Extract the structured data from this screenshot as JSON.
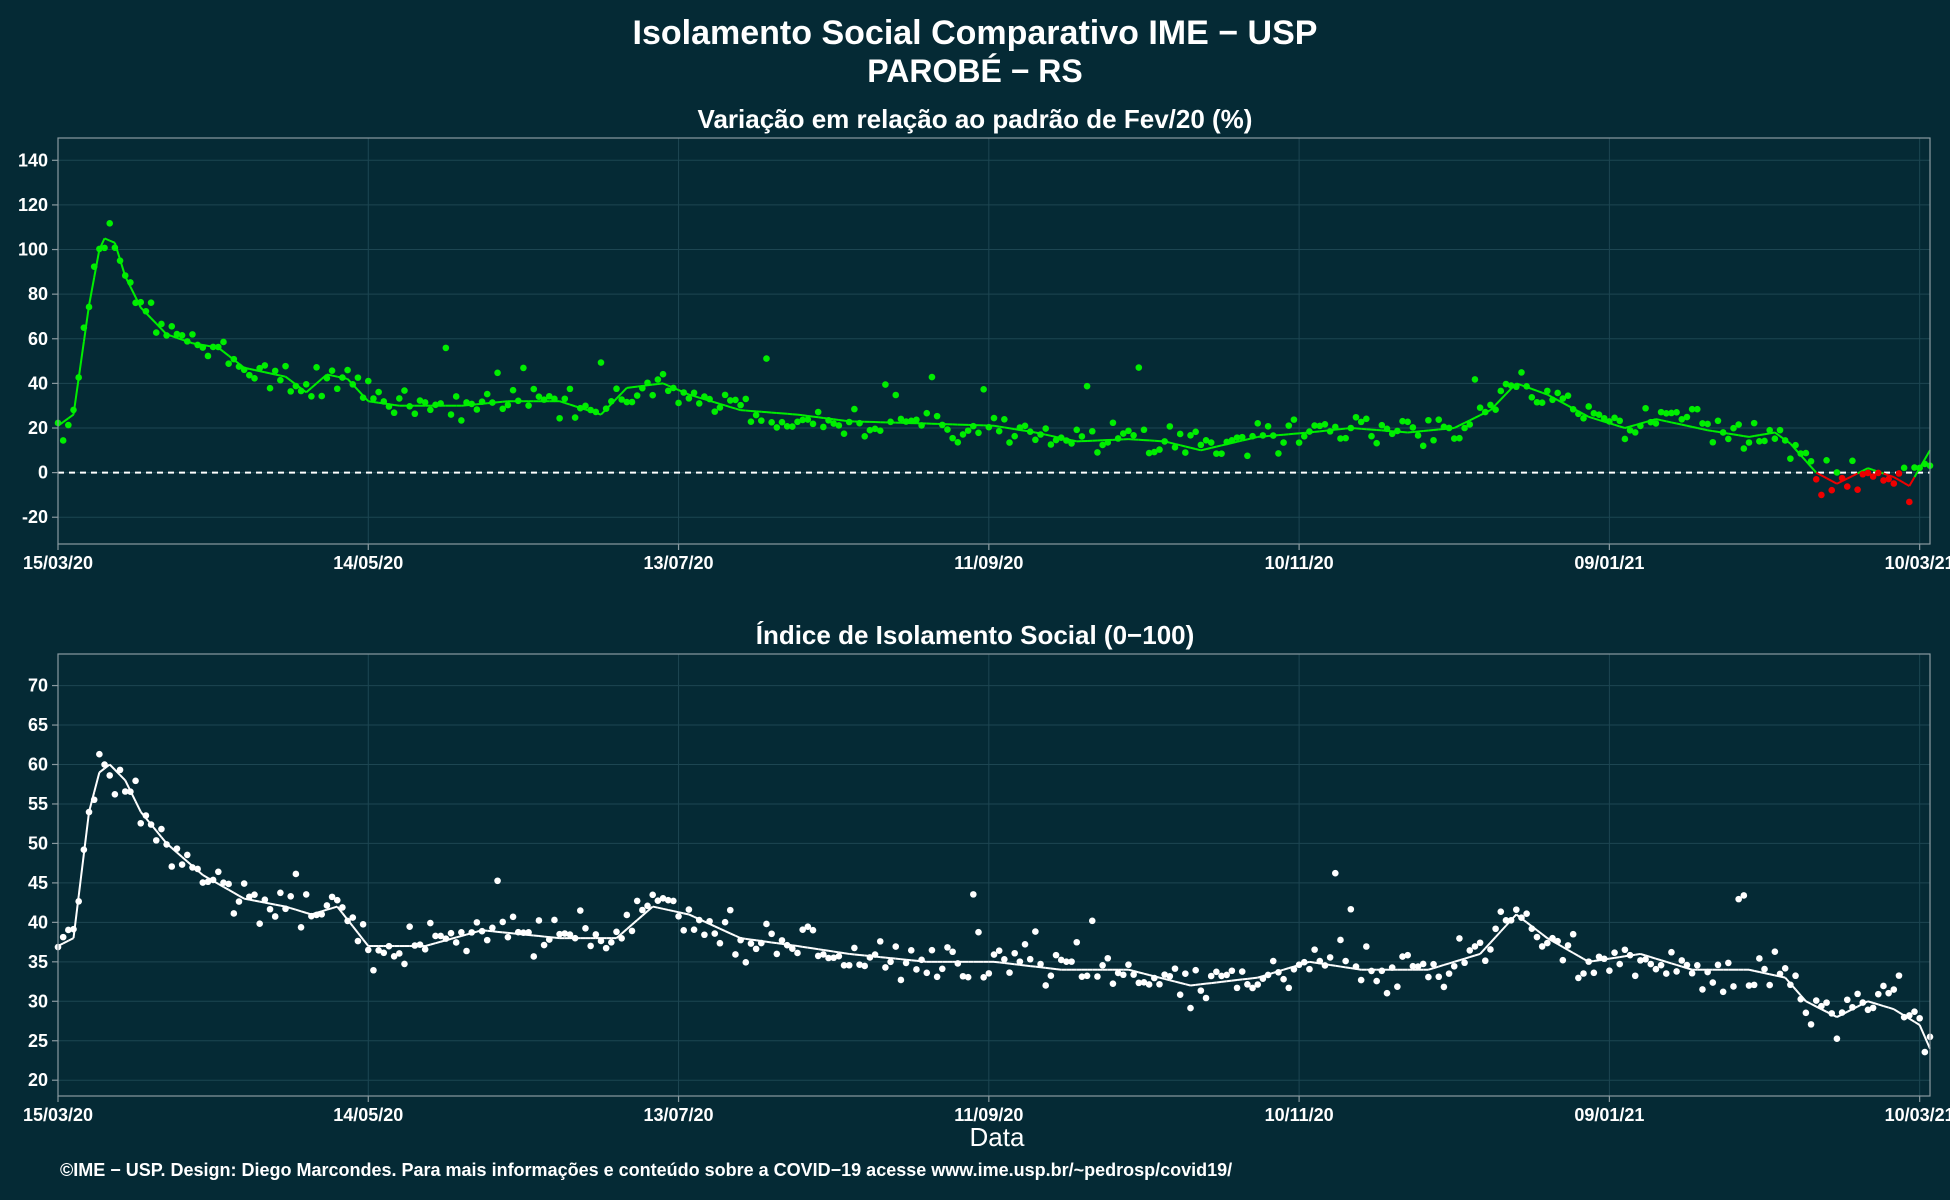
{
  "colors": {
    "background": "#052a35",
    "grid": "#1d4652",
    "frame": "#8a9aa0",
    "text": "#ffffff",
    "positive": "#00ee00",
    "negative": "#ee0000",
    "index_points": "#ffffff"
  },
  "title_main": "Isolamento Social Comparativo IME − USP",
  "title_city": "PAROBÉ − RS",
  "footer": "©IME − USP. Design: Diego Marcondes. Para mais informações e conteúdo sobre a COVID−19 acesse www.ime.usp.br/~pedrosp/covid19/",
  "chart_data": [
    {
      "type": "scatter",
      "title": "Variação em relação ao padrão de Fev/20 (%)",
      "xlabel": "",
      "ylabel": "",
      "x_start": "2020-03-15",
      "x_end": "2021-03-12",
      "x_ticks": [
        "15/03/20",
        "14/05/20",
        "13/07/20",
        "11/09/20",
        "10/11/20",
        "09/01/21",
        "10/03/21"
      ],
      "ylim": [
        -32,
        150
      ],
      "y_ticks": [
        -20,
        0,
        20,
        40,
        60,
        80,
        100,
        120,
        140
      ],
      "reference_line": 0,
      "points_color_rule": "green if value >= 0, red if value < 0",
      "trend": "7-day moving average",
      "anchors": [
        [
          "2020-03-15",
          21
        ],
        [
          "2020-03-18",
          26
        ],
        [
          "2020-03-21",
          75
        ],
        [
          "2020-03-23",
          100
        ],
        [
          "2020-03-24",
          105
        ],
        [
          "2020-03-26",
          103
        ],
        [
          "2020-03-28",
          88
        ],
        [
          "2020-03-31",
          74
        ],
        [
          "2020-04-05",
          62
        ],
        [
          "2020-04-10",
          58
        ],
        [
          "2020-04-15",
          56
        ],
        [
          "2020-04-20",
          47
        ],
        [
          "2020-04-28",
          43
        ],
        [
          "2020-05-02",
          36
        ],
        [
          "2020-05-06",
          44
        ],
        [
          "2020-05-10",
          42
        ],
        [
          "2020-05-14",
          32
        ],
        [
          "2020-05-20",
          30
        ],
        [
          "2020-06-01",
          30
        ],
        [
          "2020-06-10",
          32
        ],
        [
          "2020-06-20",
          32
        ],
        [
          "2020-06-28",
          26
        ],
        [
          "2020-07-03",
          38
        ],
        [
          "2020-07-10",
          40
        ],
        [
          "2020-07-15",
          35
        ],
        [
          "2020-07-25",
          28
        ],
        [
          "2020-08-05",
          26
        ],
        [
          "2020-08-15",
          23
        ],
        [
          "2020-08-30",
          22
        ],
        [
          "2020-09-12",
          21
        ],
        [
          "2020-09-20",
          18
        ],
        [
          "2020-09-28",
          14
        ],
        [
          "2020-10-08",
          15
        ],
        [
          "2020-10-15",
          14
        ],
        [
          "2020-10-22",
          10
        ],
        [
          "2020-11-02",
          16
        ],
        [
          "2020-11-12",
          18
        ],
        [
          "2020-11-20",
          20
        ],
        [
          "2020-12-01",
          18
        ],
        [
          "2020-12-10",
          20
        ],
        [
          "2020-12-17",
          28
        ],
        [
          "2020-12-22",
          40
        ],
        [
          "2020-12-28",
          35
        ],
        [
          "2021-01-05",
          25
        ],
        [
          "2021-01-12",
          20
        ],
        [
          "2021-01-18",
          24
        ],
        [
          "2021-01-28",
          19
        ],
        [
          "2021-02-05",
          16
        ],
        [
          "2021-02-10",
          18
        ],
        [
          "2021-02-13",
          13
        ],
        [
          "2021-02-18",
          0
        ],
        [
          "2021-02-22",
          -5
        ],
        [
          "2021-02-28",
          2
        ],
        [
          "2021-03-05",
          -2
        ],
        [
          "2021-03-08",
          -6
        ],
        [
          "2021-03-12",
          10
        ]
      ]
    },
    {
      "type": "scatter",
      "title": "Índice de Isolamento Social (0−100)",
      "xlabel": "Data",
      "ylabel": "",
      "x_start": "2020-03-15",
      "x_end": "2021-03-12",
      "x_ticks": [
        "15/03/20",
        "14/05/20",
        "13/07/20",
        "11/09/20",
        "10/11/20",
        "09/01/21",
        "10/03/21"
      ],
      "ylim": [
        18,
        74
      ],
      "y_ticks": [
        20,
        25,
        30,
        35,
        40,
        45,
        50,
        55,
        60,
        65,
        70
      ],
      "trend": "7-day moving average",
      "anchors": [
        [
          "2020-03-15",
          37
        ],
        [
          "2020-03-18",
          38
        ],
        [
          "2020-03-21",
          54
        ],
        [
          "2020-03-23",
          59
        ],
        [
          "2020-03-25",
          60
        ],
        [
          "2020-03-28",
          58
        ],
        [
          "2020-03-31",
          54
        ],
        [
          "2020-04-05",
          50
        ],
        [
          "2020-04-12",
          46
        ],
        [
          "2020-04-20",
          43
        ],
        [
          "2020-04-28",
          42
        ],
        [
          "2020-05-03",
          41
        ],
        [
          "2020-05-08",
          42
        ],
        [
          "2020-05-14",
          37
        ],
        [
          "2020-05-25",
          37
        ],
        [
          "2020-06-05",
          39
        ],
        [
          "2020-06-20",
          38
        ],
        [
          "2020-07-01",
          38
        ],
        [
          "2020-07-08",
          42
        ],
        [
          "2020-07-15",
          41
        ],
        [
          "2020-07-25",
          38
        ],
        [
          "2020-08-05",
          37
        ],
        [
          "2020-08-15",
          36
        ],
        [
          "2020-08-30",
          35
        ],
        [
          "2020-09-12",
          35
        ],
        [
          "2020-09-25",
          34
        ],
        [
          "2020-10-08",
          34
        ],
        [
          "2020-10-20",
          32
        ],
        [
          "2020-11-02",
          33
        ],
        [
          "2020-11-12",
          35
        ],
        [
          "2020-11-22",
          34
        ],
        [
          "2020-12-05",
          34
        ],
        [
          "2020-12-15",
          36
        ],
        [
          "2020-12-22",
          41
        ],
        [
          "2020-12-28",
          38
        ],
        [
          "2021-01-05",
          35
        ],
        [
          "2021-01-15",
          36
        ],
        [
          "2021-01-25",
          34
        ],
        [
          "2021-02-05",
          34
        ],
        [
          "2021-02-12",
          33
        ],
        [
          "2021-02-16",
          30
        ],
        [
          "2021-02-22",
          28
        ],
        [
          "2021-02-28",
          30
        ],
        [
          "2021-03-05",
          29
        ],
        [
          "2021-03-10",
          27
        ],
        [
          "2021-03-12",
          24
        ]
      ]
    }
  ]
}
